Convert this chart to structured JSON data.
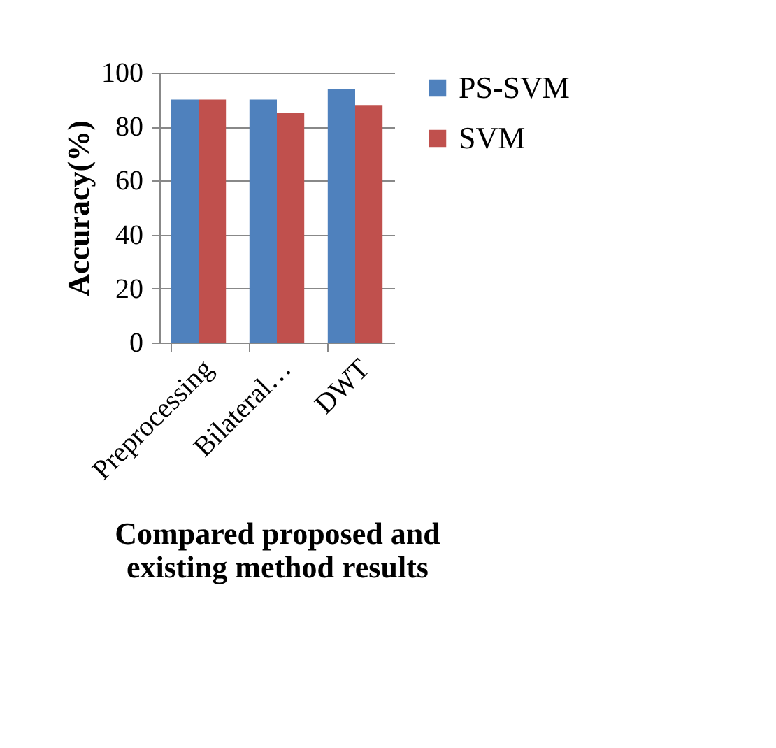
{
  "chart_data": {
    "type": "bar",
    "categories": [
      "Preprocessing",
      "Bilateral…",
      "DWT"
    ],
    "series": [
      {
        "name": "PS-SVM",
        "color": "#4f81bd",
        "values": [
          90,
          90,
          94
        ]
      },
      {
        "name": "SVM",
        "color": "#c0504d",
        "values": [
          90,
          85,
          88
        ]
      }
    ],
    "ylabel": "Accuracy(%)",
    "xlabel": "Compared proposed and existing method results",
    "ylim": [
      0,
      100
    ],
    "yticks": [
      0,
      20,
      40,
      60,
      80,
      100
    ],
    "grid": "y",
    "legend": "right"
  }
}
